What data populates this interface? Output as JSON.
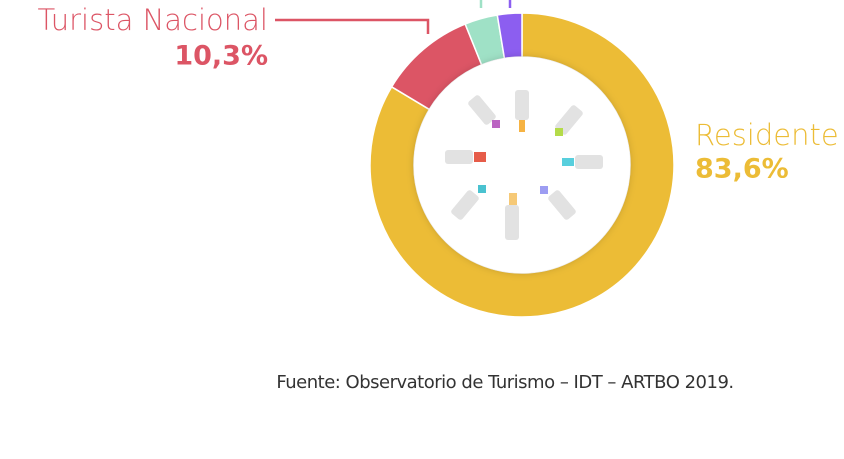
{
  "chart_data": {
    "type": "pie",
    "donut": true,
    "categories": [
      "Residente",
      "Turista Nacional",
      null,
      null
    ],
    "values": [
      83.6,
      10.3,
      3.5,
      2.6
    ],
    "value_labels": [
      "83,6%",
      "10,3%",
      null,
      null
    ],
    "colors": [
      "#ECBC36",
      "#DC5565",
      "#9FE1C6",
      "#8C5EF0"
    ],
    "source": "Fuente: Observatorio de Turismo – IDT – ARTBO 2019."
  }
}
